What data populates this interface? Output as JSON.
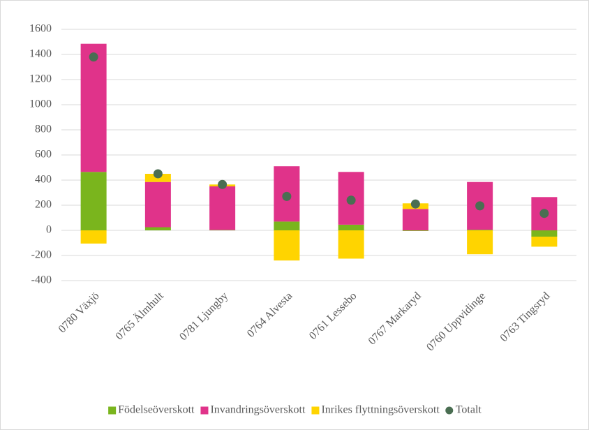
{
  "chart_data": {
    "type": "bar",
    "stacked": true,
    "categories": [
      "0780 Växjö",
      "0765 Älmhult",
      "0781 Ljungby",
      "0764 Alvesta",
      "0761 Lessebo",
      "0767 Markaryd",
      "0760 Uppvidinge",
      "0763 Tingsryd"
    ],
    "series": [
      {
        "name": "Födelseöverskott",
        "color": "#7ab51d",
        "values": [
          465,
          25,
          3,
          70,
          45,
          -5,
          5,
          -50
        ]
      },
      {
        "name": "Invandringsöverskott",
        "color": "#e0338a",
        "values": [
          1020,
          360,
          347,
          440,
          420,
          170,
          380,
          265
        ]
      },
      {
        "name": "Inrikes flyttningsöverskott",
        "color": "#ffd400",
        "values": [
          -105,
          65,
          15,
          -240,
          -225,
          45,
          -190,
          -80
        ]
      },
      {
        "name": "Totalt",
        "color": "#4a6e52",
        "type": "scatter",
        "values": [
          1380,
          450,
          365,
          270,
          240,
          210,
          195,
          135
        ]
      }
    ],
    "ylim": [
      -400,
      1600
    ],
    "yticks": [
      -400,
      -200,
      0,
      200,
      400,
      600,
      800,
      1000,
      1200,
      1400,
      1600
    ],
    "grid": true,
    "legend": "bottom"
  }
}
